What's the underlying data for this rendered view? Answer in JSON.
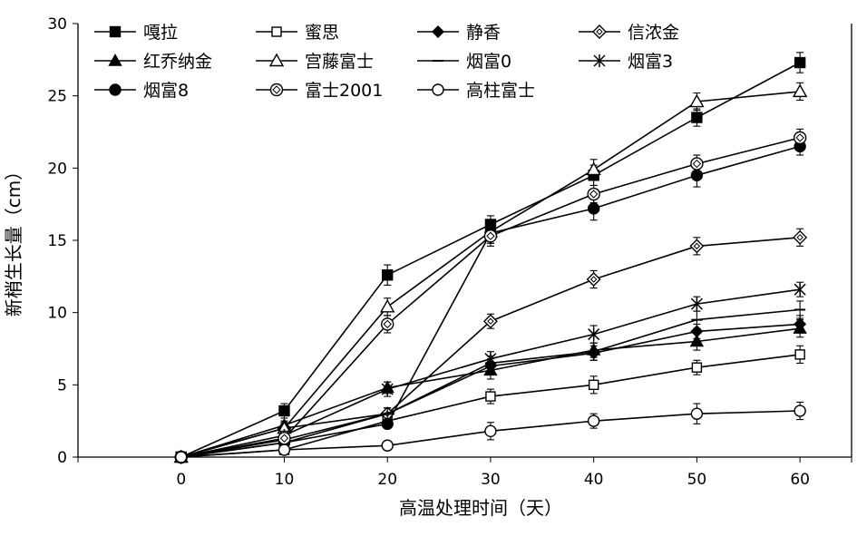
{
  "chart_data": {
    "type": "line",
    "xlabel": "高温处理时间（天）",
    "ylabel": "新梢生长量（cm）",
    "xlim": [
      -10,
      65
    ],
    "ylim": [
      0,
      30
    ],
    "x_ticks": [
      0,
      10,
      20,
      30,
      40,
      50,
      60
    ],
    "y_ticks": [
      0,
      5,
      10,
      15,
      20,
      25,
      30
    ],
    "grid": false,
    "legend_position": "top-left",
    "x": [
      0,
      10,
      20,
      30,
      40,
      50,
      60
    ],
    "series": [
      {
        "name": "嘎拉",
        "marker": "square-filled",
        "values": [
          0,
          3.2,
          12.6,
          16.1,
          19.5,
          23.5,
          27.3
        ],
        "errors": [
          0,
          0.5,
          0.7,
          0.6,
          0.7,
          0.6,
          0.7
        ]
      },
      {
        "name": "蜜思",
        "marker": "square-open",
        "values": [
          0,
          0.5,
          2.5,
          4.2,
          5.0,
          6.2,
          7.1
        ],
        "errors": [
          0,
          0.3,
          0.4,
          0.5,
          0.6,
          0.5,
          0.6
        ]
      },
      {
        "name": "静香",
        "marker": "diamond-filled",
        "values": [
          0,
          1.2,
          3.0,
          6.3,
          7.2,
          8.7,
          9.2
        ],
        "errors": [
          0,
          0.3,
          0.4,
          0.5,
          0.5,
          0.5,
          0.6
        ]
      },
      {
        "name": "信浓金",
        "marker": "diamond-open",
        "values": [
          0,
          2.0,
          3.0,
          9.4,
          12.3,
          14.6,
          15.2
        ],
        "errors": [
          0,
          0.3,
          0.4,
          0.5,
          0.6,
          0.6,
          0.6
        ]
      },
      {
        "name": "红乔纳金",
        "marker": "triangle-filled",
        "values": [
          0,
          2.2,
          4.8,
          6.0,
          7.4,
          8.0,
          8.9
        ],
        "errors": [
          0,
          0.3,
          0.4,
          0.6,
          0.5,
          0.6,
          0.6
        ]
      },
      {
        "name": "宫藤富士",
        "marker": "triangle-open",
        "values": [
          0,
          2.0,
          10.4,
          15.6,
          19.9,
          24.6,
          25.3
        ],
        "errors": [
          0,
          0.4,
          0.6,
          0.8,
          0.7,
          0.6,
          0.6
        ]
      },
      {
        "name": "烟富0",
        "marker": "dash",
        "values": [
          0,
          1.0,
          3.0,
          6.5,
          7.3,
          9.5,
          10.2
        ],
        "errors": [
          0,
          0.3,
          0.4,
          0.5,
          0.6,
          0.6,
          0.6
        ]
      },
      {
        "name": "烟富3",
        "marker": "asterisk",
        "values": [
          0,
          1.5,
          4.7,
          6.8,
          8.5,
          10.6,
          11.6
        ],
        "errors": [
          0,
          0.3,
          0.5,
          0.5,
          0.6,
          0.5,
          0.5
        ]
      },
      {
        "name": "烟富8",
        "marker": "circle-filled",
        "values": [
          0,
          1.0,
          2.3,
          15.5,
          17.2,
          19.5,
          21.5
        ],
        "errors": [
          0,
          0.3,
          0.3,
          0.7,
          0.8,
          0.8,
          0.6
        ]
      },
      {
        "name": "富士2001",
        "marker": "circle-dot",
        "values": [
          0,
          1.3,
          9.2,
          15.3,
          18.2,
          20.3,
          22.1
        ],
        "errors": [
          0,
          0.3,
          0.6,
          0.7,
          0.6,
          0.6,
          0.6
        ]
      },
      {
        "name": "高柱富士",
        "marker": "circle-open",
        "values": [
          0,
          0.5,
          0.8,
          1.8,
          2.5,
          3.0,
          3.2
        ],
        "errors": [
          0,
          0.3,
          0.3,
          0.6,
          0.5,
          0.7,
          0.6
        ]
      }
    ]
  }
}
